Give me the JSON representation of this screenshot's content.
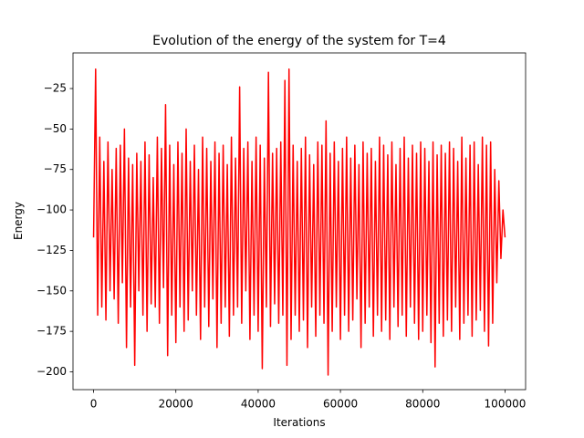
{
  "chart_data": {
    "type": "line",
    "title": "Evolution of the energy of the system for T=4",
    "xlabel": "Iterations",
    "ylabel": "Energy",
    "color": "#ff0000",
    "grid": false,
    "xlim": [
      -5000,
      105000
    ],
    "ylim": [
      -211,
      -3
    ],
    "xticks": [
      0,
      20000,
      40000,
      60000,
      80000,
      100000
    ],
    "yticks": [
      {
        "value": -200,
        "label": "−200"
      },
      {
        "value": -175,
        "label": "−175"
      },
      {
        "value": -150,
        "label": "−150"
      },
      {
        "value": -125,
        "label": "−125"
      },
      {
        "value": -100,
        "label": "−100"
      },
      {
        "value": -75,
        "label": "−75"
      },
      {
        "value": -50,
        "label": "−50"
      },
      {
        "value": -25,
        "label": "−25"
      }
    ],
    "x": [
      0,
      500,
      1000,
      1500,
      2000,
      2500,
      3000,
      3500,
      4000,
      4500,
      5000,
      5500,
      6000,
      6500,
      7000,
      7500,
      8000,
      8500,
      9000,
      9500,
      10000,
      10500,
      11000,
      11500,
      12000,
      12500,
      13000,
      13500,
      14000,
      14500,
      15000,
      15500,
      16000,
      16500,
      17000,
      17500,
      18000,
      18500,
      19000,
      19500,
      20000,
      20500,
      21000,
      21500,
      22000,
      22500,
      23000,
      23500,
      24000,
      24500,
      25000,
      25500,
      26000,
      26500,
      27000,
      27500,
      28000,
      28500,
      29000,
      29500,
      30000,
      30500,
      31000,
      31500,
      32000,
      32500,
      33000,
      33500,
      34000,
      34500,
      35000,
      35500,
      36000,
      36500,
      37000,
      37500,
      38000,
      38500,
      39000,
      39500,
      40000,
      40500,
      41000,
      41500,
      42000,
      42500,
      43000,
      43500,
      44000,
      44500,
      45000,
      45500,
      46000,
      46500,
      47000,
      47500,
      48000,
      48500,
      49000,
      49500,
      50000,
      50500,
      51000,
      51500,
      52000,
      52500,
      53000,
      53500,
      54000,
      54500,
      55000,
      55500,
      56000,
      56500,
      57000,
      57500,
      58000,
      58500,
      59000,
      59500,
      60000,
      60500,
      61000,
      61500,
      62000,
      62500,
      63000,
      63500,
      64000,
      64500,
      65000,
      65500,
      66000,
      66500,
      67000,
      67500,
      68000,
      68500,
      69000,
      69500,
      70000,
      70500,
      71000,
      71500,
      72000,
      72500,
      73000,
      73500,
      74000,
      74500,
      75000,
      75500,
      76000,
      76500,
      77000,
      77500,
      78000,
      78500,
      79000,
      79500,
      80000,
      80500,
      81000,
      81500,
      82000,
      82500,
      83000,
      83500,
      84000,
      84500,
      85000,
      85500,
      86000,
      86500,
      87000,
      87500,
      88000,
      88500,
      89000,
      89500,
      90000,
      90500,
      91000,
      91500,
      92000,
      92500,
      93000,
      93500,
      94000,
      94500,
      95000,
      95500,
      96000,
      96500,
      97000,
      97500,
      98000,
      98500,
      99000,
      99500,
      100000
    ],
    "values": [
      -117,
      -13,
      -165,
      -55,
      -160,
      -70,
      -168,
      -58,
      -150,
      -75,
      -155,
      -62,
      -170,
      -60,
      -145,
      -50,
      -185,
      -68,
      -160,
      -72,
      -196,
      -65,
      -150,
      -70,
      -165,
      -58,
      -175,
      -66,
      -158,
      -80,
      -160,
      -55,
      -170,
      -62,
      -148,
      -35,
      -190,
      -60,
      -165,
      -72,
      -182,
      -58,
      -160,
      -65,
      -175,
      -50,
      -168,
      -70,
      -150,
      -60,
      -165,
      -75,
      -180,
      -55,
      -160,
      -62,
      -172,
      -70,
      -155,
      -58,
      -185,
      -65,
      -170,
      -60,
      -160,
      -72,
      -178,
      -55,
      -165,
      -68,
      -160,
      -24,
      -170,
      -62,
      -150,
      -58,
      -180,
      -70,
      -165,
      -55,
      -175,
      -60,
      -198,
      -68,
      -160,
      -15,
      -172,
      -65,
      -158,
      -62,
      -170,
      -58,
      -165,
      -20,
      -196,
      -13,
      -180,
      -60,
      -165,
      -70,
      -175,
      -62,
      -168,
      -55,
      -185,
      -66,
      -160,
      -72,
      -178,
      -58,
      -165,
      -60,
      -170,
      -45,
      -202,
      -65,
      -175,
      -58,
      -160,
      -70,
      -180,
      -62,
      -165,
      -55,
      -175,
      -68,
      -168,
      -60,
      -155,
      -72,
      -185,
      -58,
      -170,
      -65,
      -160,
      -62,
      -178,
      -70,
      -165,
      -55,
      -175,
      -60,
      -168,
      -66,
      -180,
      -58,
      -160,
      -72,
      -172,
      -62,
      -165,
      -55,
      -178,
      -68,
      -160,
      -60,
      -170,
      -65,
      -180,
      -58,
      -175,
      -62,
      -165,
      -70,
      -182,
      -58,
      -197,
      -66,
      -170,
      -60,
      -178,
      -65,
      -168,
      -58,
      -175,
      -62,
      -160,
      -70,
      -180,
      -55,
      -170,
      -68,
      -165,
      -60,
      -178,
      -58,
      -168,
      -72,
      -162,
      -55,
      -175,
      -60,
      -184,
      -58,
      -170,
      -75,
      -145,
      -82,
      -130,
      -100,
      -117
    ]
  }
}
